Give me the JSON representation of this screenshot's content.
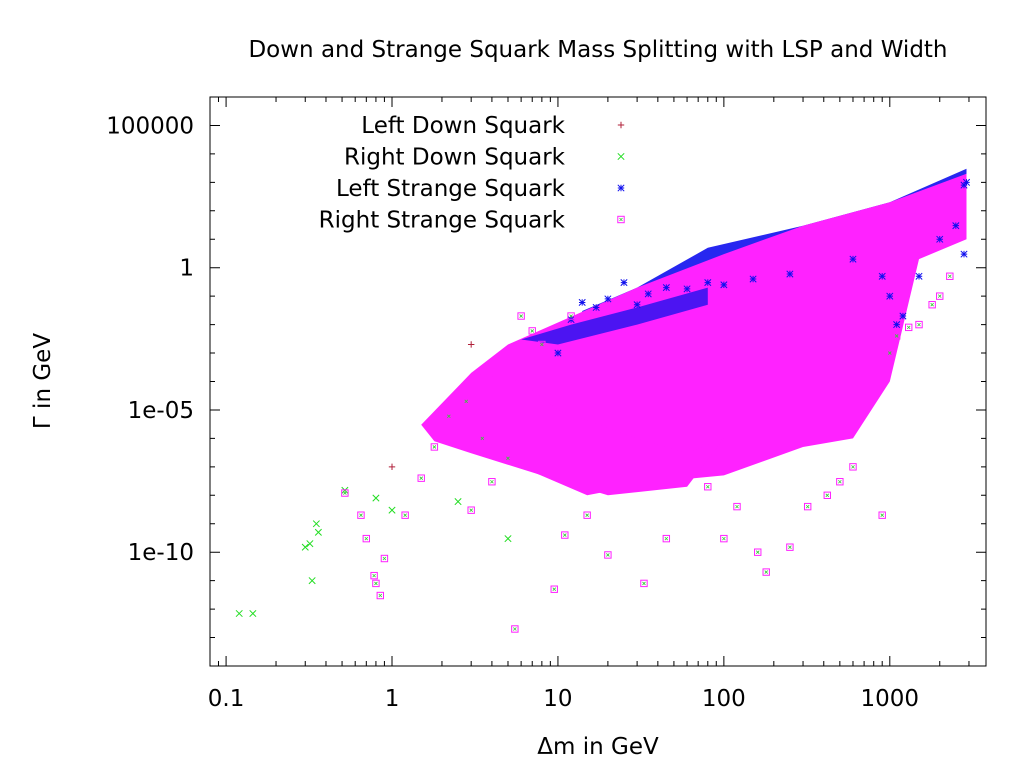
{
  "chart_data": {
    "type": "scatter",
    "title": "Down and Strange Squark Mass Splitting with LSP and Width",
    "xlabel": "Δm in GeV",
    "ylabel": "Γ in GeV",
    "xscale": "log",
    "yscale": "log",
    "xlim": [
      0.08,
      3800
    ],
    "ylim": [
      1e-14,
      1000000.0
    ],
    "x_ticks": [
      {
        "value": 0.1,
        "label": "0.1"
      },
      {
        "value": 1,
        "label": "1"
      },
      {
        "value": 10,
        "label": "10"
      },
      {
        "value": 100,
        "label": "100"
      },
      {
        "value": 1000,
        "label": "1000"
      }
    ],
    "y_ticks": [
      {
        "value": 100000,
        "label": "100000"
      },
      {
        "value": 1,
        "label": "1"
      },
      {
        "value": 1e-05,
        "label": "1e-05"
      },
      {
        "value": 1e-10,
        "label": "1e-10"
      }
    ],
    "legend_position": "top-left",
    "series": [
      {
        "name": "Left Down Squark",
        "marker": "plus",
        "color": "#b0203a",
        "points": [
          [
            1.0,
            1e-07
          ],
          [
            3.0,
            0.002
          ]
        ]
      },
      {
        "name": "Right Down Squark",
        "marker": "cross",
        "color": "#22dd22",
        "points": [
          [
            0.12,
            7e-13
          ],
          [
            0.145,
            7e-13
          ],
          [
            0.3,
            1.5e-10
          ],
          [
            0.32,
            2e-10
          ],
          [
            0.33,
            1e-11
          ],
          [
            0.35,
            1e-09
          ],
          [
            0.36,
            5e-10
          ],
          [
            0.52,
            1.5e-08
          ],
          [
            0.8,
            8e-09
          ],
          [
            1.0,
            3e-09
          ],
          [
            2.5,
            6e-09
          ],
          [
            5.0,
            3e-10
          ]
        ]
      },
      {
        "name": "Left Strange Squark",
        "marker": "star",
        "color": "#1010ee",
        "points": [
          [
            10,
            0.001
          ],
          [
            12,
            0.015
          ],
          [
            14,
            0.06
          ],
          [
            17,
            0.04
          ],
          [
            20,
            0.08
          ],
          [
            25,
            0.3
          ],
          [
            30,
            0.05
          ],
          [
            35,
            0.12
          ],
          [
            45,
            0.2
          ],
          [
            60,
            0.18
          ],
          [
            80,
            0.3
          ],
          [
            100,
            0.25
          ],
          [
            150,
            0.4
          ],
          [
            250,
            0.6
          ],
          [
            600,
            2
          ],
          [
            900,
            0.5
          ],
          [
            1000,
            0.1
          ],
          [
            1100,
            0.01
          ],
          [
            1200,
            0.02
          ],
          [
            1500,
            0.5
          ],
          [
            2000,
            10.0
          ],
          [
            2500,
            30.0
          ],
          [
            2800,
            800.0
          ],
          [
            2900,
            1000.0
          ],
          [
            2800,
            3.0
          ]
        ]
      },
      {
        "name": "Right Strange Squark",
        "marker": "square",
        "color": "#ff22ff",
        "points": [
          [
            0.52,
            1.2e-08
          ],
          [
            0.65,
            2e-09
          ],
          [
            0.7,
            3e-10
          ],
          [
            0.78,
            1.5e-11
          ],
          [
            0.8,
            8e-12
          ],
          [
            0.85,
            3e-12
          ],
          [
            0.9,
            6e-11
          ],
          [
            1.2,
            2e-09
          ],
          [
            1.5,
            4e-08
          ],
          [
            1.8,
            5e-07
          ],
          [
            2.2,
            6e-06
          ],
          [
            2.8,
            2e-05
          ],
          [
            3.0,
            3e-09
          ],
          [
            3.5,
            1e-06
          ],
          [
            4.0,
            3e-08
          ],
          [
            5.0,
            2e-07
          ],
          [
            5.5,
            2e-13
          ],
          [
            6.0,
            0.02
          ],
          [
            7.0,
            0.006
          ],
          [
            8.0,
            0.002
          ],
          [
            9.5,
            5e-12
          ],
          [
            11,
            4e-10
          ],
          [
            12,
            0.02
          ],
          [
            15,
            2e-09
          ],
          [
            20,
            8e-11
          ],
          [
            33,
            8e-12
          ],
          [
            45,
            3e-10
          ],
          [
            80,
            2e-08
          ],
          [
            100,
            3e-10
          ],
          [
            120,
            4e-09
          ],
          [
            160,
            1e-10
          ],
          [
            180,
            2e-11
          ],
          [
            250,
            1.5e-10
          ],
          [
            320,
            4e-09
          ],
          [
            420,
            1e-08
          ],
          [
            500,
            3e-08
          ],
          [
            600,
            1e-07
          ],
          [
            900,
            2e-09
          ],
          [
            1000,
            0.001
          ],
          [
            1100,
            0.004
          ],
          [
            1300,
            0.008
          ],
          [
            1500,
            0.01
          ],
          [
            1800,
            0.05
          ],
          [
            2000,
            0.1
          ],
          [
            2300,
            0.5
          ]
        ]
      }
    ]
  }
}
